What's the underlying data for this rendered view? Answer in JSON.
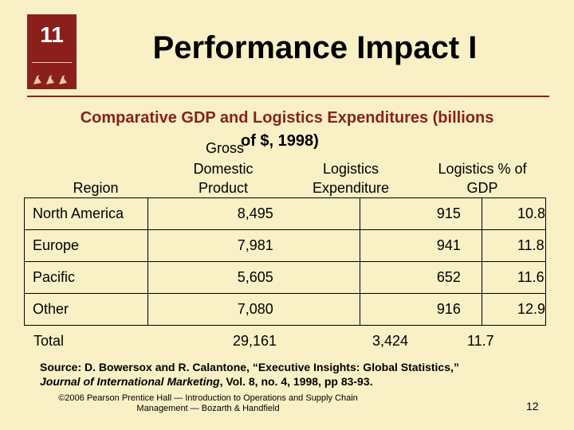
{
  "logo": {
    "number": "11",
    "icon": "chapter-logo-geese-icon"
  },
  "title": "Performance Impact I",
  "subtitle": "Comparative GDP and Logistics Expenditures (billions",
  "subtitle2": "of $, 1998)",
  "headers": {
    "region": "Region",
    "gdp_1": "Gross",
    "gdp_2": "Domestic",
    "gdp_3": "Product",
    "logi_1": "Logistics",
    "logi_2": "Expenditure",
    "pct_1": "Logistics % of",
    "pct_2": "GDP"
  },
  "rows": [
    {
      "region": "North America",
      "gdp": "8,495",
      "logistics": "915",
      "pct": "10.8"
    },
    {
      "region": "Europe",
      "gdp": "7,981",
      "logistics": "941",
      "pct": "11.8"
    },
    {
      "region": "Pacific",
      "gdp": "5,605",
      "logistics": "652",
      "pct": "11.6"
    },
    {
      "region": "Other",
      "gdp": "7,080",
      "logistics": "916",
      "pct": "12.9"
    }
  ],
  "total": {
    "label": "Total",
    "gdp": "29,161",
    "logistics": "3,424",
    "pct": "11.7"
  },
  "source": {
    "line1": "Source: D. Bowersox and R. Calantone, “Executive Insights: Global Statistics,”",
    "journal": "Journal of International Marketing",
    "line2_rest": ", Vol. 8, no. 4, 1998, pp 83-93."
  },
  "footer": {
    "line1": "©2006 Pearson Prentice Hall — Introduction to Operations and Supply Chain",
    "line2": "Management — Bozarth & Handfield"
  },
  "page_number": "12",
  "colors": {
    "background": "#f9f0c6",
    "accent": "#8b1f1c"
  }
}
